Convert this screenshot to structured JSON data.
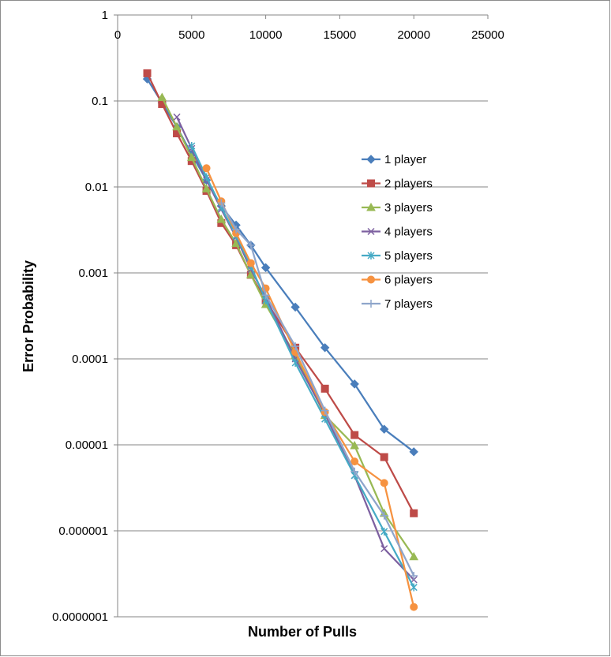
{
  "chart_data": {
    "type": "line",
    "title": "",
    "xlabel": "Number of Pulls",
    "ylabel": "Error Probability",
    "x_axis": {
      "min": 0,
      "max": 25000,
      "step": 5000,
      "position": "top",
      "tick_labels": [
        "0",
        "5000",
        "10000",
        "15000",
        "20000",
        "25000"
      ]
    },
    "y_axis": {
      "scale": "log",
      "min": 1e-07,
      "max": 1,
      "tick_labels": [
        "1",
        "0.1",
        "0.01",
        "0.001",
        "0.0001",
        "0.00001",
        "0.000001",
        "0.0000001"
      ]
    },
    "grid": true,
    "legend_position": "right",
    "series": [
      {
        "name": "1 player",
        "color": "#4A7EBB",
        "marker": "diamond",
        "x": [
          2000,
          3000,
          4000,
          5000,
          6000,
          7000,
          8000,
          9000,
          10000,
          12000,
          14000,
          16000,
          18000,
          20000
        ],
        "y": [
          0.18,
          0.095,
          0.05,
          0.024,
          0.012,
          0.006,
          0.0036,
          0.0021,
          0.00115,
          0.0004,
          0.000135,
          5.1e-05,
          1.52e-05,
          8.3e-06
        ]
      },
      {
        "name": "2 players",
        "color": "#BE4B48",
        "marker": "square",
        "x": [
          2000,
          3000,
          4000,
          5000,
          6000,
          7000,
          8000,
          9000,
          10000,
          12000,
          14000,
          16000,
          18000,
          20000
        ],
        "y": [
          0.21,
          0.092,
          0.042,
          0.02,
          0.009,
          0.0038,
          0.0021,
          0.00095,
          0.00048,
          0.000135,
          4.5e-05,
          1.3e-05,
          7.2e-06,
          1.6e-06
        ]
      },
      {
        "name": "3 players",
        "color": "#98B954",
        "marker": "triangle",
        "x": [
          3000,
          4000,
          5000,
          6000,
          7000,
          8000,
          9000,
          10000,
          12000,
          14000,
          16000,
          18000,
          20000
        ],
        "y": [
          0.11,
          0.05,
          0.022,
          0.0095,
          0.0042,
          0.0022,
          0.00095,
          0.00043,
          0.00011,
          2.2e-05,
          9.8e-06,
          1.6e-06,
          5e-07
        ]
      },
      {
        "name": "4 players",
        "color": "#7D60A0",
        "marker": "x",
        "x": [
          4000,
          5000,
          6000,
          7000,
          8000,
          9000,
          10000,
          12000,
          14000,
          16000,
          18000,
          20000
        ],
        "y": [
          0.065,
          0.028,
          0.012,
          0.0055,
          0.0026,
          0.0011,
          0.00052,
          0.0001,
          2.3e-05,
          4.4e-06,
          6.2e-07,
          2.7e-07
        ]
      },
      {
        "name": "5 players",
        "color": "#46AAC5",
        "marker": "star",
        "x": [
          5000,
          6000,
          7000,
          8000,
          9000,
          10000,
          12000,
          14000,
          16000,
          18000,
          20000
        ],
        "y": [
          0.03,
          0.013,
          0.0058,
          0.0027,
          0.0012,
          0.00048,
          9e-05,
          2e-05,
          4.4e-06,
          9.8e-07,
          2.2e-07
        ]
      },
      {
        "name": "6 players",
        "color": "#F69240",
        "marker": "circle",
        "x": [
          6000,
          7000,
          8000,
          9000,
          10000,
          12000,
          14000,
          16000,
          18000,
          20000
        ],
        "y": [
          0.0165,
          0.0068,
          0.0029,
          0.0013,
          0.00066,
          0.00012,
          2.4e-05,
          6.4e-06,
          3.6e-06,
          1.3e-07
        ]
      },
      {
        "name": "7 players",
        "color": "#8EA5CB",
        "marker": "plus",
        "x": [
          7000,
          8000,
          9000,
          10000,
          12000,
          14000,
          16000,
          18000,
          20000
        ],
        "y": [
          0.0065,
          0.0032,
          0.0021,
          0.00055,
          0.00014,
          2.5e-05,
          4.9e-06,
          1.5e-06,
          3e-07
        ]
      }
    ]
  }
}
